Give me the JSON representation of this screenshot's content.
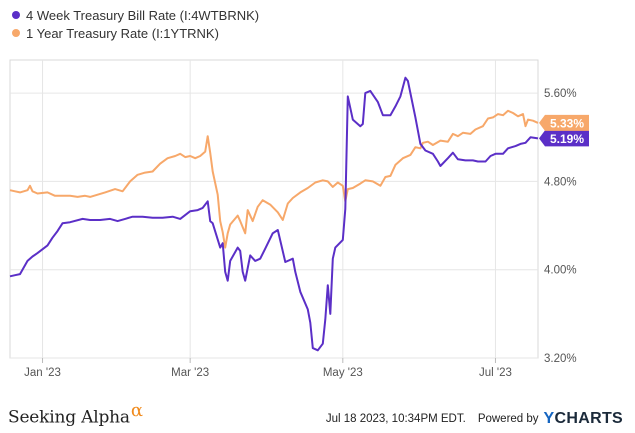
{
  "chart_data": {
    "type": "line",
    "title": "",
    "xlabel": "",
    "ylabel": "",
    "x_ticks": [
      "Jan '23",
      "Mar '23",
      "May '23",
      "Jul '23"
    ],
    "y_ticks": [
      "3.20%",
      "4.00%",
      "4.80%",
      "5.60%"
    ],
    "ylim": [
      3.2,
      5.9
    ],
    "xlim": [
      "2022-12-19",
      "2023-07-18"
    ],
    "grid": true,
    "legend_position": "top-left",
    "series": [
      {
        "name": "4 Week Treasury Bill Rate (I:4WTBRNK)",
        "color": "#5b2fc7",
        "end_label": "5.19%",
        "points": [
          [
            "2022-12-19",
            3.94
          ],
          [
            "2022-12-21",
            3.95
          ],
          [
            "2022-12-23",
            3.96
          ],
          [
            "2022-12-26",
            4.08
          ],
          [
            "2022-12-28",
            4.12
          ],
          [
            "2022-12-30",
            4.15
          ],
          [
            "2023-01-03",
            4.22
          ],
          [
            "2023-01-05",
            4.29
          ],
          [
            "2023-01-07",
            4.35
          ],
          [
            "2023-01-09",
            4.42
          ],
          [
            "2023-01-12",
            4.43
          ],
          [
            "2023-01-17",
            4.46
          ],
          [
            "2023-01-20",
            4.45
          ],
          [
            "2023-01-24",
            4.45
          ],
          [
            "2023-01-28",
            4.46
          ],
          [
            "2023-01-31",
            4.44
          ],
          [
            "2023-02-03",
            4.46
          ],
          [
            "2023-02-06",
            4.48
          ],
          [
            "2023-02-10",
            4.48
          ],
          [
            "2023-02-14",
            4.47
          ],
          [
            "2023-02-18",
            4.47
          ],
          [
            "2023-02-22",
            4.48
          ],
          [
            "2023-02-25",
            4.46
          ],
          [
            "2023-03-01",
            4.53
          ],
          [
            "2023-03-04",
            4.54
          ],
          [
            "2023-03-06",
            4.56
          ],
          [
            "2023-03-08",
            4.62
          ],
          [
            "2023-03-09",
            4.44
          ],
          [
            "2023-03-10",
            4.42
          ],
          [
            "2023-03-13",
            4.2
          ],
          [
            "2023-03-14",
            4.24
          ],
          [
            "2023-03-15",
            3.98
          ],
          [
            "2023-03-16",
            3.9
          ],
          [
            "2023-03-17",
            4.08
          ],
          [
            "2023-03-20",
            4.2
          ],
          [
            "2023-03-21",
            4.17
          ],
          [
            "2023-03-22",
            3.98
          ],
          [
            "2023-03-23",
            3.9
          ],
          [
            "2023-03-25",
            4.13
          ],
          [
            "2023-03-27",
            4.08
          ],
          [
            "2023-03-29",
            4.1
          ],
          [
            "2023-03-31",
            4.19
          ],
          [
            "2023-04-03",
            4.33
          ],
          [
            "2023-04-05",
            4.36
          ],
          [
            "2023-04-08",
            4.07
          ],
          [
            "2023-04-11",
            4.1
          ],
          [
            "2023-04-12",
            3.98
          ],
          [
            "2023-04-14",
            3.8
          ],
          [
            "2023-04-17",
            3.64
          ],
          [
            "2023-04-18",
            3.52
          ],
          [
            "2023-04-19",
            3.29
          ],
          [
            "2023-04-21",
            3.27
          ],
          [
            "2023-04-23",
            3.33
          ],
          [
            "2023-04-24",
            3.55
          ],
          [
            "2023-04-25",
            3.86
          ],
          [
            "2023-04-26",
            3.6
          ],
          [
            "2023-04-27",
            4.1
          ],
          [
            "2023-04-28",
            4.2
          ],
          [
            "2023-05-01",
            4.27
          ],
          [
            "2023-05-02",
            4.55
          ],
          [
            "2023-05-03",
            5.57
          ],
          [
            "2023-05-05",
            5.36
          ],
          [
            "2023-05-08",
            5.3
          ],
          [
            "2023-05-09",
            5.32
          ],
          [
            "2023-05-10",
            5.6
          ],
          [
            "2023-05-12",
            5.62
          ],
          [
            "2023-05-15",
            5.52
          ],
          [
            "2023-05-17",
            5.4
          ],
          [
            "2023-05-20",
            5.4
          ],
          [
            "2023-05-22",
            5.48
          ],
          [
            "2023-05-24",
            5.57
          ],
          [
            "2023-05-26",
            5.74
          ],
          [
            "2023-05-27",
            5.71
          ],
          [
            "2023-05-30",
            5.38
          ],
          [
            "2023-06-01",
            5.14
          ],
          [
            "2023-06-03",
            5.08
          ],
          [
            "2023-06-06",
            5.05
          ],
          [
            "2023-06-08",
            4.98
          ],
          [
            "2023-06-09",
            4.94
          ],
          [
            "2023-06-12",
            5.01
          ],
          [
            "2023-06-14",
            5.06
          ],
          [
            "2023-06-16",
            5.0
          ],
          [
            "2023-06-19",
            4.99
          ],
          [
            "2023-06-22",
            4.99
          ],
          [
            "2023-06-24",
            4.98
          ],
          [
            "2023-06-27",
            4.98
          ],
          [
            "2023-06-29",
            5.03
          ],
          [
            "2023-07-01",
            5.05
          ],
          [
            "2023-07-04",
            5.05
          ],
          [
            "2023-07-06",
            5.1
          ],
          [
            "2023-07-09",
            5.12
          ],
          [
            "2023-07-11",
            5.14
          ],
          [
            "2023-07-13",
            5.15
          ],
          [
            "2023-07-15",
            5.2
          ],
          [
            "2023-07-18",
            5.19
          ]
        ]
      },
      {
        "name": "1 Year Treasury Rate (I:1YTRNK)",
        "color": "#f7a86a",
        "end_label": "5.33%",
        "points": [
          [
            "2022-12-19",
            4.72
          ],
          [
            "2022-12-21",
            4.71
          ],
          [
            "2022-12-23",
            4.7
          ],
          [
            "2022-12-26",
            4.72
          ],
          [
            "2022-12-27",
            4.76
          ],
          [
            "2022-12-28",
            4.71
          ],
          [
            "2022-12-30",
            4.69
          ],
          [
            "2023-01-03",
            4.7
          ],
          [
            "2023-01-06",
            4.67
          ],
          [
            "2023-01-09",
            4.67
          ],
          [
            "2023-01-12",
            4.67
          ],
          [
            "2023-01-15",
            4.66
          ],
          [
            "2023-01-18",
            4.67
          ],
          [
            "2023-01-20",
            4.66
          ],
          [
            "2023-01-23",
            4.68
          ],
          [
            "2023-01-26",
            4.7
          ],
          [
            "2023-01-30",
            4.73
          ],
          [
            "2023-02-02",
            4.71
          ],
          [
            "2023-02-05",
            4.8
          ],
          [
            "2023-02-08",
            4.86
          ],
          [
            "2023-02-11",
            4.88
          ],
          [
            "2023-02-14",
            4.89
          ],
          [
            "2023-02-17",
            4.96
          ],
          [
            "2023-02-20",
            5.01
          ],
          [
            "2023-02-23",
            5.03
          ],
          [
            "2023-02-25",
            5.05
          ],
          [
            "2023-02-27",
            5.02
          ],
          [
            "2023-03-01",
            5.03
          ],
          [
            "2023-03-03",
            5.01
          ],
          [
            "2023-03-05",
            5.03
          ],
          [
            "2023-03-07",
            5.07
          ],
          [
            "2023-03-08",
            5.21
          ],
          [
            "2023-03-09",
            5.06
          ],
          [
            "2023-03-10",
            4.89
          ],
          [
            "2023-03-12",
            4.68
          ],
          [
            "2023-03-13",
            4.44
          ],
          [
            "2023-03-14",
            4.34
          ],
          [
            "2023-03-15",
            4.2
          ],
          [
            "2023-03-16",
            4.33
          ],
          [
            "2023-03-17",
            4.41
          ],
          [
            "2023-03-20",
            4.49
          ],
          [
            "2023-03-21",
            4.44
          ],
          [
            "2023-03-23",
            4.33
          ],
          [
            "2023-03-24",
            4.54
          ],
          [
            "2023-03-26",
            4.44
          ],
          [
            "2023-03-28",
            4.57
          ],
          [
            "2023-03-30",
            4.63
          ],
          [
            "2023-04-02",
            4.59
          ],
          [
            "2023-04-05",
            4.52
          ],
          [
            "2023-04-07",
            4.45
          ],
          [
            "2023-04-09",
            4.6
          ],
          [
            "2023-04-11",
            4.65
          ],
          [
            "2023-04-14",
            4.7
          ],
          [
            "2023-04-17",
            4.74
          ],
          [
            "2023-04-20",
            4.79
          ],
          [
            "2023-04-23",
            4.81
          ],
          [
            "2023-04-25",
            4.8
          ],
          [
            "2023-04-27",
            4.75
          ],
          [
            "2023-04-29",
            4.79
          ],
          [
            "2023-05-01",
            4.76
          ],
          [
            "2023-05-02",
            4.62
          ],
          [
            "2023-05-03",
            4.73
          ],
          [
            "2023-05-05",
            4.74
          ],
          [
            "2023-05-08",
            4.78
          ],
          [
            "2023-05-10",
            4.81
          ],
          [
            "2023-05-13",
            4.8
          ],
          [
            "2023-05-16",
            4.76
          ],
          [
            "2023-05-18",
            4.84
          ],
          [
            "2023-05-20",
            4.85
          ],
          [
            "2023-05-22",
            4.95
          ],
          [
            "2023-05-25",
            5.01
          ],
          [
            "2023-05-28",
            5.04
          ],
          [
            "2023-05-30",
            5.11
          ],
          [
            "2023-06-01",
            5.1
          ],
          [
            "2023-06-02",
            5.15
          ],
          [
            "2023-06-04",
            5.16
          ],
          [
            "2023-06-06",
            5.13
          ],
          [
            "2023-06-09",
            5.17
          ],
          [
            "2023-06-12",
            5.16
          ],
          [
            "2023-06-14",
            5.23
          ],
          [
            "2023-06-16",
            5.21
          ],
          [
            "2023-06-18",
            5.24
          ],
          [
            "2023-06-21",
            5.23
          ],
          [
            "2023-06-23",
            5.27
          ],
          [
            "2023-06-26",
            5.3
          ],
          [
            "2023-06-28",
            5.37
          ],
          [
            "2023-06-30",
            5.38
          ],
          [
            "2023-07-02",
            5.41
          ],
          [
            "2023-07-04",
            5.4
          ],
          [
            "2023-07-06",
            5.44
          ],
          [
            "2023-07-08",
            5.42
          ],
          [
            "2023-07-10",
            5.39
          ],
          [
            "2023-07-12",
            5.41
          ],
          [
            "2023-07-13",
            5.3
          ],
          [
            "2023-07-14",
            5.36
          ],
          [
            "2023-07-16",
            5.35
          ],
          [
            "2023-07-18",
            5.33
          ]
        ]
      }
    ]
  },
  "footer": {
    "brand": "Seeking Alpha",
    "brand_mark": "α",
    "timestamp": "Jul 18 2023, 10:34PM EDT.",
    "powered_by": "Powered by",
    "provider_y": "Y",
    "provider_rest": "CHARTS"
  }
}
